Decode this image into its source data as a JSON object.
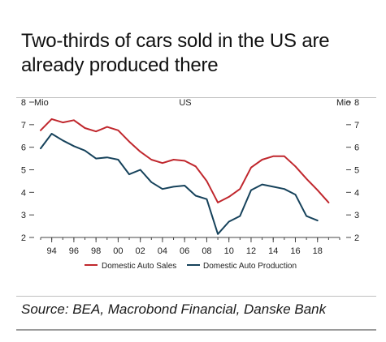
{
  "title": "Two-thirds of cars sold in the US are already produced there",
  "source": "Source: BEA, Macrobond Financial, Danske Bank",
  "chart_data": {
    "type": "line",
    "region_label": "US",
    "left_unit": "Mio",
    "right_unit": "Mio",
    "ylim": [
      2,
      8
    ],
    "yticks": [
      2,
      3,
      4,
      5,
      6,
      7,
      8
    ],
    "xlim": [
      1993,
      2020
    ],
    "xticks": [
      1994,
      1996,
      1998,
      2000,
      2002,
      2004,
      2006,
      2008,
      2010,
      2012,
      2014,
      2016,
      2018
    ],
    "xtick_labels": [
      "94",
      "96",
      "98",
      "00",
      "02",
      "04",
      "06",
      "08",
      "10",
      "12",
      "14",
      "16",
      "18"
    ],
    "grid": false,
    "legend_position": "bottom",
    "series": [
      {
        "name": "Domestic Auto Sales",
        "color": "#c0272d",
        "x": [
          1993,
          1994,
          1995,
          1996,
          1997,
          1998,
          1999,
          2000,
          2001,
          2002,
          2003,
          2004,
          2005,
          2006,
          2007,
          2008,
          2009,
          2010,
          2011,
          2012,
          2013,
          2014,
          2015,
          2016,
          2017,
          2018,
          2019
        ],
        "values": [
          6.75,
          7.25,
          7.1,
          7.2,
          6.85,
          6.7,
          6.9,
          6.75,
          6.25,
          5.8,
          5.45,
          5.3,
          5.45,
          5.4,
          5.15,
          4.5,
          3.55,
          3.8,
          4.15,
          5.1,
          5.45,
          5.6,
          5.6,
          5.15,
          4.6,
          4.1,
          3.55
        ]
      },
      {
        "name": "Domestic Auto Production",
        "color": "#16425b",
        "x": [
          1993,
          1994,
          1995,
          1996,
          1997,
          1998,
          1999,
          2000,
          2001,
          2002,
          2003,
          2004,
          2005,
          2006,
          2007,
          2008,
          2009,
          2010,
          2011,
          2012,
          2013,
          2014,
          2015,
          2016,
          2017,
          2018,
          2019
        ],
        "values": [
          5.95,
          6.6,
          6.3,
          6.05,
          5.85,
          5.5,
          5.55,
          5.45,
          4.8,
          5.0,
          4.45,
          4.15,
          4.25,
          4.3,
          3.85,
          3.7,
          2.15,
          2.7,
          2.95,
          4.1,
          4.35,
          4.25,
          4.15,
          3.9,
          2.95,
          2.75,
          null
        ]
      }
    ]
  }
}
